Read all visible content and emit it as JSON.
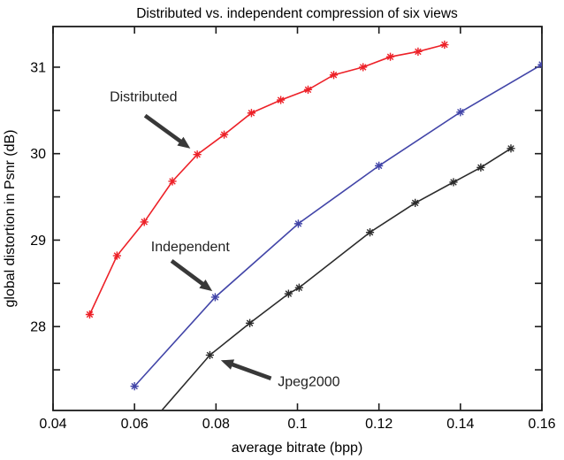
{
  "title": "Distributed vs. independent compression of six views",
  "chart_data": {
    "type": "line",
    "title": "Distributed vs. independent compression of six views",
    "xlabel": "average bitrate (bpp)",
    "ylabel": "global distortion in Psnr (dB)",
    "xlim": [
      0.04,
      0.16
    ],
    "ylim": [
      27.03,
      31.47
    ],
    "grid": false,
    "legend": "none (in-plot text annotations with arrows)",
    "frame_color": "#1c1c1c",
    "xticks": {
      "values": [
        0.04,
        0.06,
        0.08,
        0.1,
        0.12,
        0.14,
        0.16
      ],
      "labels": [
        "0.04",
        "0.06",
        "0.08",
        "0.1",
        "0.12",
        "0.14",
        "0.16"
      ]
    },
    "yticks": {
      "values": [
        27.5,
        28,
        28.5,
        29,
        29.5,
        30,
        30.5,
        31
      ],
      "labeled_values": [
        28,
        29,
        30,
        31
      ],
      "labels": [
        "28",
        "29",
        "30",
        "31"
      ]
    },
    "series": [
      {
        "name": "Distributed",
        "color": "#ed2128",
        "marker": "asterisk",
        "points": [
          [
            0.049,
            28.14
          ],
          [
            0.0557,
            28.82
          ],
          [
            0.0624,
            29.21
          ],
          [
            0.0693,
            29.68
          ],
          [
            0.0754,
            29.99
          ],
          [
            0.082,
            30.22
          ],
          [
            0.0887,
            30.47
          ],
          [
            0.0959,
            30.62
          ],
          [
            0.1026,
            30.74
          ],
          [
            0.1089,
            30.91
          ],
          [
            0.1161,
            31.0
          ],
          [
            0.1228,
            31.12
          ],
          [
            0.1296,
            31.18
          ],
          [
            0.1361,
            31.26
          ]
        ]
      },
      {
        "name": "Independent",
        "color": "#4245a8",
        "marker": "asterisk",
        "points": [
          [
            0.06,
            27.31
          ],
          [
            0.0798,
            28.34
          ],
          [
            0.1002,
            29.19
          ],
          [
            0.12,
            29.86
          ],
          [
            0.14,
            30.48
          ],
          [
            0.16,
            31.03
          ]
        ]
      },
      {
        "name": "Jpeg2000",
        "color": "#2b2b2b",
        "marker": "asterisk",
        "line_prefix": [
          [
            0.0665,
            27.02
          ]
        ],
        "points": [
          [
            0.0785,
            27.67
          ],
          [
            0.0883,
            28.04
          ],
          [
            0.0978,
            28.38
          ],
          [
            0.1004,
            28.45
          ],
          [
            0.1178,
            29.09
          ],
          [
            0.1289,
            29.43
          ],
          [
            0.1383,
            29.67
          ],
          [
            0.145,
            29.84
          ],
          [
            0.1524,
            30.06
          ]
        ]
      }
    ],
    "annotations": [
      {
        "label": "Distributed",
        "text_at": [
          0.0622,
          30.66
        ],
        "arrow_from": [
          0.0626,
          30.44
        ],
        "arrow_to": [
          0.0737,
          30.06
        ],
        "color": "#383838"
      },
      {
        "label": "Independent",
        "text_at": [
          0.0737,
          28.93
        ],
        "arrow_from": [
          0.0691,
          28.76
        ],
        "arrow_to": [
          0.0791,
          28.41
        ],
        "color": "#383838"
      },
      {
        "label": "Jpeg2000",
        "text_at": [
          0.1028,
          27.37
        ],
        "arrow_from": [
          0.0935,
          27.4
        ],
        "arrow_to": [
          0.0812,
          27.61
        ],
        "color": "#383838"
      }
    ]
  }
}
